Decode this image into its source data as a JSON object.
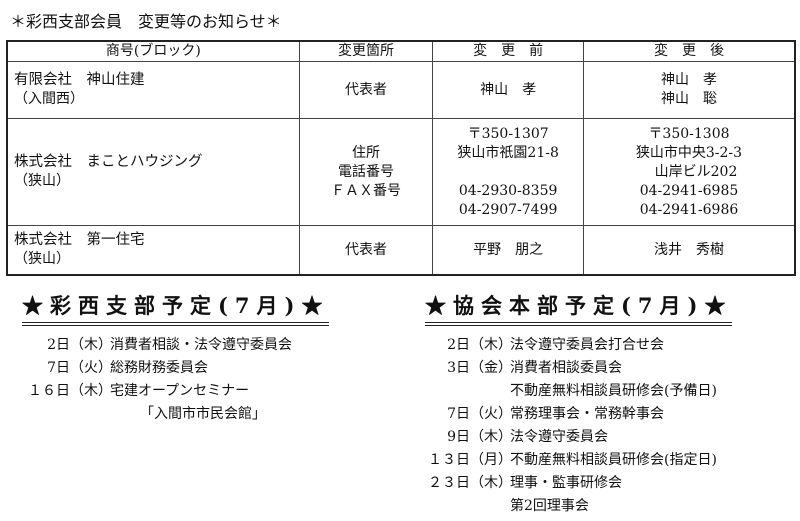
{
  "title": "＊彩西支部会員　変更等のお知らせ＊",
  "table": {
    "headers": [
      "商号(ブロック)",
      "変更箇所",
      "変　更　前",
      "変　更　後"
    ],
    "rows": [
      {
        "company": "有限会社　神山住建",
        "block": "（入間西）",
        "fields": [
          "代表者"
        ],
        "before": [
          "神山　孝"
        ],
        "after": [
          "神山　孝",
          "神山　聡"
        ]
      },
      {
        "company": "株式会社　まことハウジング",
        "block": "（狭山）",
        "fields": [
          "住所",
          "電話番号",
          "ＦＡＸ番号"
        ],
        "before": [
          "〒350-1307",
          "狭山市祇園21-8",
          "",
          "04-2930-8359",
          "04-2907-7499"
        ],
        "after": [
          "〒350-1308",
          "狭山市中央3-2-3",
          "　山岸ビル202",
          "04-2941-6985",
          "04-2941-6986"
        ]
      },
      {
        "company": "株式会社　第一住宅",
        "block": "（狭山）",
        "fields": [
          "代表者"
        ],
        "before": [
          "平野　朋之"
        ],
        "after": [
          "浅井　秀樹"
        ]
      }
    ]
  },
  "branch": {
    "heading": "★彩西支部予定(7月)★",
    "items": [
      {
        "day": "2日",
        "weekday": "（木）",
        "lines": [
          "消費者相談・法令遵守委員会"
        ]
      },
      {
        "day": "7日",
        "weekday": "（火）",
        "lines": [
          "総務財務委員会"
        ]
      },
      {
        "day": "１６日",
        "weekday": "（木）",
        "lines": [
          "宅建オープンセミナー",
          "「入間市市民会館」"
        ]
      }
    ]
  },
  "hq": {
    "heading": "★協会本部予定(7月)★",
    "items": [
      {
        "day": "2日",
        "weekday": "（木）",
        "lines": [
          "法令遵守委員会打合せ会"
        ]
      },
      {
        "day": "3日",
        "weekday": "（金）",
        "lines": [
          "消費者相談委員会",
          "不動産無料相談員研修会(予備日)"
        ]
      },
      {
        "day": "7日",
        "weekday": "（火）",
        "lines": [
          "常務理事会・常務幹事会"
        ]
      },
      {
        "day": "9日",
        "weekday": "（木）",
        "lines": [
          "法令遵守委員会"
        ]
      },
      {
        "day": "１３日",
        "weekday": "（月）",
        "lines": [
          "不動産無料相談員研修会(指定日)"
        ]
      },
      {
        "day": "２３日",
        "weekday": "（木）",
        "lines": [
          "理事・監事研修会",
          "第2回理事会"
        ]
      }
    ]
  }
}
